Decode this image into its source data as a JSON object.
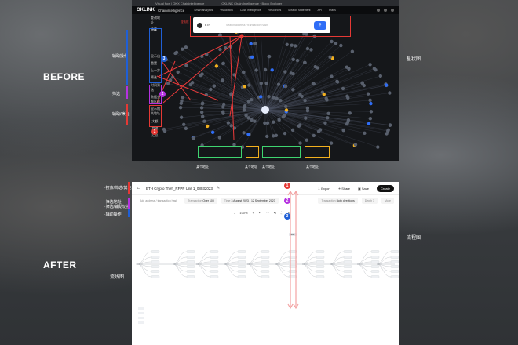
{
  "labels": {
    "before": "BEFORE",
    "after": "AFTER",
    "right_before": "星状图",
    "right_after": "流程图",
    "left_after": "流线图"
  },
  "before_side_notes": [
    "辅助操作",
    "筛选",
    "辅助/筛选"
  ],
  "after_side_notes": [
    "·搜索/筛选/其他",
    "·筛选地址",
    "·筛选/辅助切换",
    "·辅助操作"
  ],
  "before_app": {
    "tabs": [
      "Visual flow | OKX Chainintelligence",
      "OKLINK Chain Intelligence · Block Explorer"
    ],
    "logo": "OKLINK",
    "logo_sub": "Chainintelligence",
    "nav": [
      "Smart analytics",
      "Visual flow",
      "Case intelligence",
      "Resources",
      "Mission statement",
      "API",
      "Plans"
    ],
    "sidebar": [
      "查询地址",
      "隐藏",
      "显示出",
      "重置",
      "上一步",
      "筛选",
      "时间筛选",
      "数据金额区间",
      "显示相关地址",
      "·大额",
      "·其他",
      "·汇总"
    ],
    "search": {
      "chip_label": "ETH",
      "chip_sub": "Ethereum",
      "placeholder": "Search address / transaction hash",
      "button_icon": "search-icon"
    },
    "search_box_caption": "搜索框",
    "bottom_captions": [
      "某个地址",
      "某个地址",
      "某个地址",
      "某个地址"
    ],
    "badges": [
      "1",
      "2",
      "3"
    ]
  },
  "after_app": {
    "title": "ETH Crypto Theft_RFPP Unit 1_08032023",
    "actions": {
      "export": "Export",
      "share": "Share",
      "save": "Save",
      "create": "Create"
    },
    "filters": {
      "search_placeholder": "Add address / transaction hash",
      "transaction_label": "Transaction",
      "transaction_value": "Over 100",
      "time_label": "Time",
      "time_value": "3 August 2023 - 12 September 2023",
      "direction_label": "Transaction",
      "direction_value": "Both directions",
      "depth": "Depth 3",
      "more": "More"
    },
    "toolbar": [
      "-",
      "100%",
      "+",
      "↶",
      "↷",
      "⟲",
      "⛶",
      "⚙"
    ],
    "badges": [
      "1",
      "2",
      "3"
    ],
    "flow_start_label": "Start"
  },
  "colors": {
    "red": "#e53935",
    "blue": "#1f5fd6",
    "pink": "#b532e0",
    "green": "#3fd470",
    "yellow": "#f2b01e",
    "annotation_arrow": "#f3a3a3"
  }
}
